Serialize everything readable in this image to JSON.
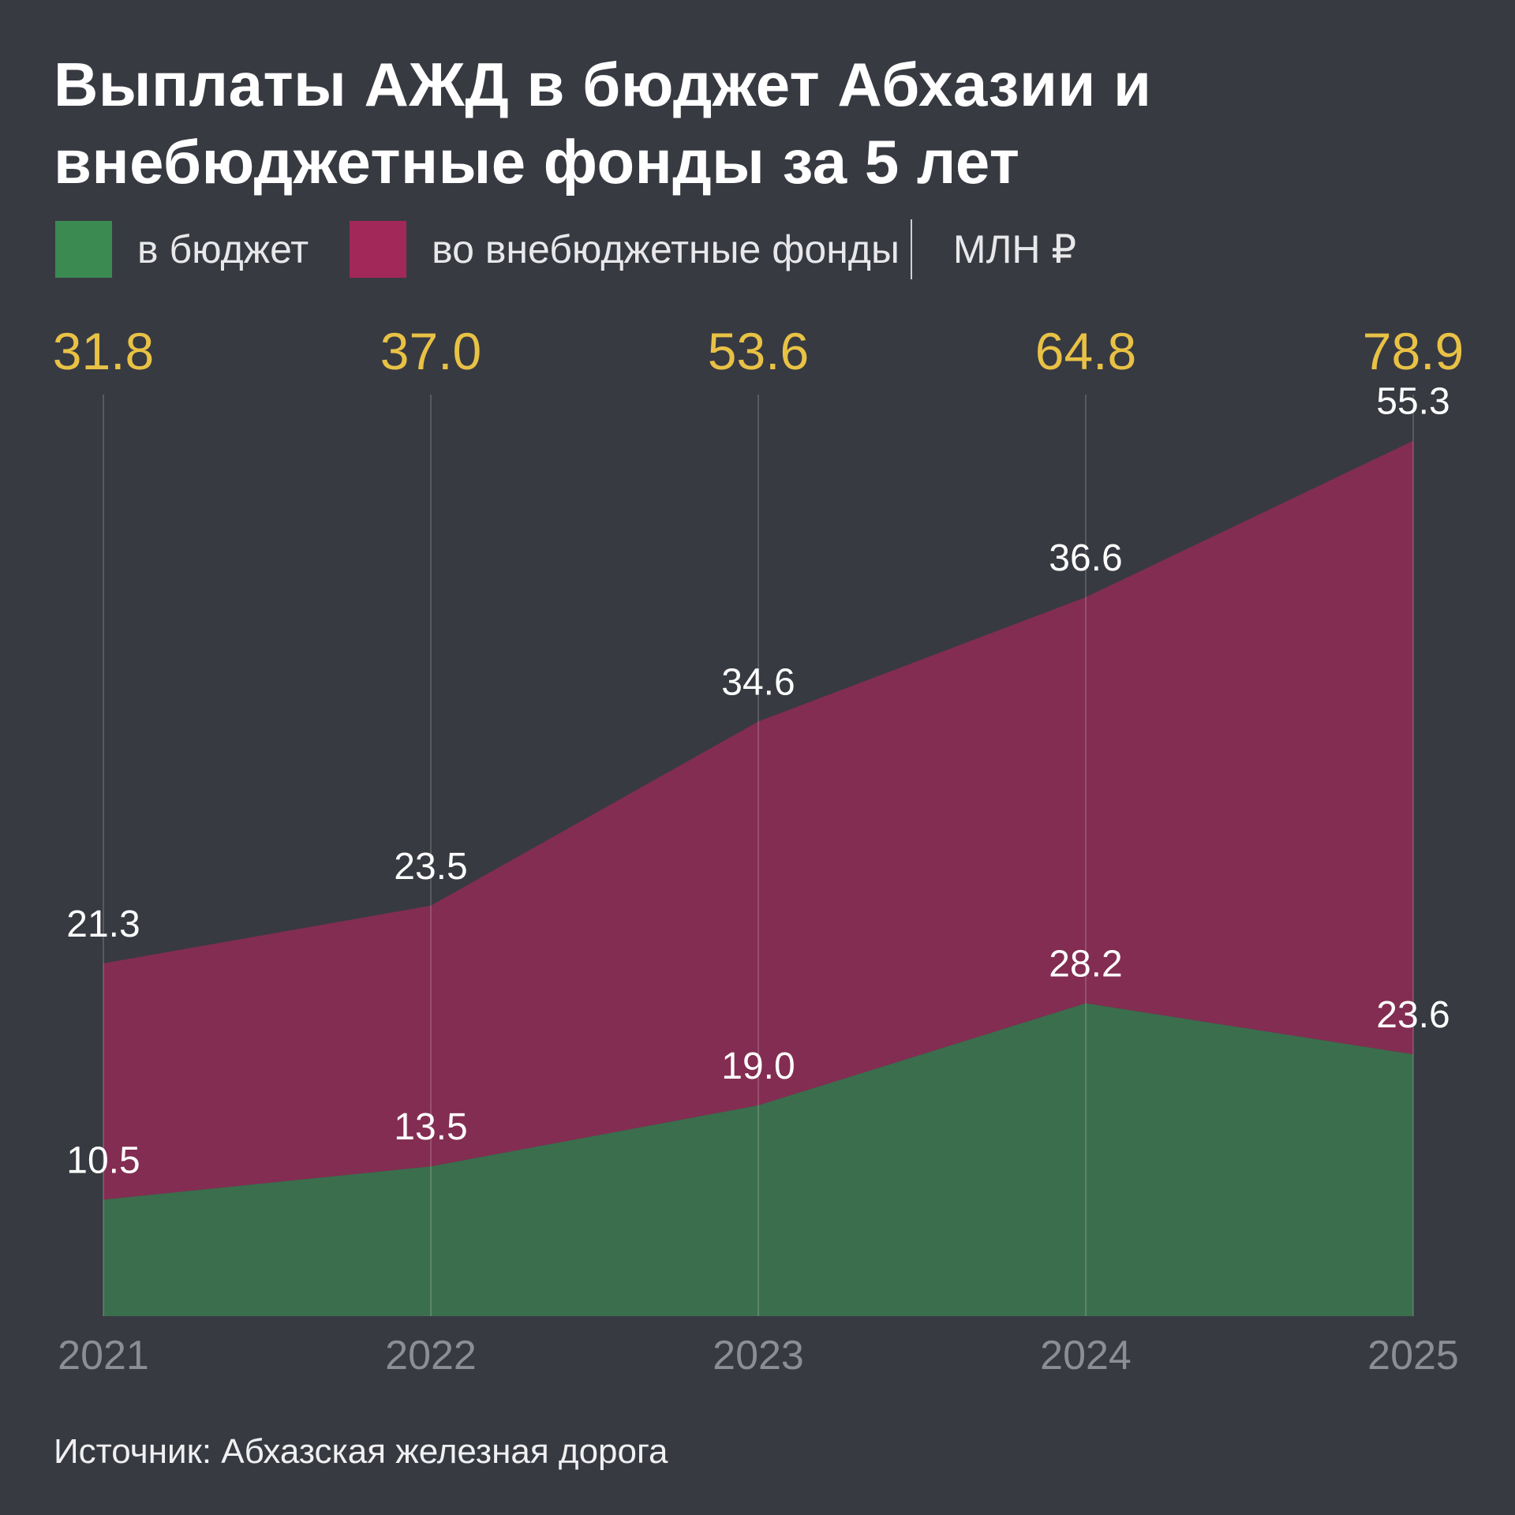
{
  "title_line1": "Выплаты АЖД в бюджет Абхазии и",
  "title_line2": "внебюджетные фонды за 5 лет",
  "legend": {
    "budget": "в бюджет",
    "funds": "во внебюджетные фонды",
    "unit": "МЛН ₽"
  },
  "source": "Источник: Абхазская железная дорога",
  "colors": {
    "budget": "#3b6e4d",
    "funds": "#832d52",
    "legend_budget": "#3b8a52",
    "legend_funds": "#a3285a",
    "totals": "#e9c245",
    "background": "#383a42"
  },
  "chart_data": {
    "type": "area",
    "stacked": true,
    "categories": [
      "2021",
      "2022",
      "2023",
      "2024",
      "2025"
    ],
    "series": [
      {
        "name": "в бюджет",
        "values": [
          10.5,
          13.5,
          19.0,
          28.2,
          23.6
        ]
      },
      {
        "name": "во внебюджетные фонды",
        "values": [
          21.3,
          23.5,
          34.6,
          36.6,
          55.3
        ]
      }
    ],
    "totals": [
      "31.8",
      "37.0",
      "53.6",
      "64.8",
      "78.9"
    ],
    "value_labels": {
      "budget": [
        "10.5",
        "13.5",
        "19.0",
        "28.2",
        "23.6"
      ],
      "funds": [
        "21.3",
        "23.5",
        "34.6",
        "36.6",
        "55.3"
      ]
    },
    "unit": "МЛН ₽",
    "grid": "vertical",
    "legend_position": "top-left"
  }
}
